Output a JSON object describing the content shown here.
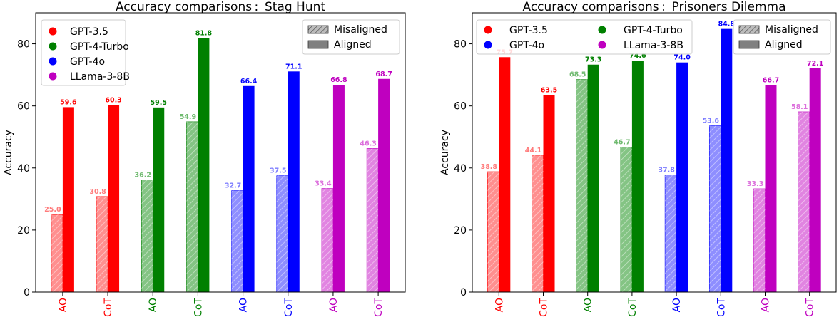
{
  "colors": {
    "gpt35": "#ff0000",
    "gpt4turbo": "#008000",
    "gpt4o": "#0000ff",
    "llama": "#bf00bf"
  },
  "legend": {
    "models": [
      "GPT-3.5",
      "GPT-4-Turbo",
      "GPT-4o",
      "LLama-3-8B"
    ],
    "styles": [
      "Misaligned",
      "Aligned"
    ]
  },
  "chart_data": [
    {
      "type": "bar",
      "title": "Accuracy comparisons :  Stag Hunt",
      "ylabel": "Accuracy",
      "ylim": [
        0,
        90
      ],
      "yticks": [
        0,
        20,
        40,
        60,
        80
      ],
      "categories": [
        "AO",
        "CoT",
        "AO",
        "CoT",
        "AO",
        "CoT",
        "AO",
        "CoT"
      ],
      "category_models": [
        "GPT-3.5",
        "GPT-3.5",
        "GPT-4-Turbo",
        "GPT-4-Turbo",
        "GPT-4o",
        "GPT-4o",
        "LLama-3-8B",
        "LLama-3-8B"
      ],
      "series": [
        {
          "name": "Misaligned",
          "values": [
            25.0,
            30.8,
            36.2,
            54.9,
            32.7,
            37.5,
            33.4,
            46.3
          ]
        },
        {
          "name": "Aligned",
          "values": [
            59.6,
            60.3,
            59.5,
            81.8,
            66.4,
            71.1,
            66.8,
            68.7
          ]
        }
      ],
      "legend_position": "top-left and top-right",
      "grid": false
    },
    {
      "type": "bar",
      "title": "Accuracy comparisons :  Prisoners Dilemma",
      "ylabel": "Accuracy",
      "ylim": [
        0,
        90
      ],
      "yticks": [
        0,
        20,
        40,
        60,
        80
      ],
      "categories": [
        "AO",
        "CoT",
        "AO",
        "CoT",
        "AO",
        "CoT",
        "AO",
        "CoT"
      ],
      "category_models": [
        "GPT-3.5",
        "GPT-3.5",
        "GPT-4-Turbo",
        "GPT-4-Turbo",
        "GPT-4o",
        "GPT-4o",
        "LLama-3-8B",
        "LLama-3-8B"
      ],
      "series": [
        {
          "name": "Misaligned",
          "values": [
            38.8,
            44.1,
            68.5,
            46.7,
            37.8,
            53.6,
            33.3,
            58.1
          ]
        },
        {
          "name": "Aligned",
          "values": [
            75.7,
            63.5,
            73.3,
            74.6,
            74.0,
            84.8,
            66.7,
            72.1
          ]
        }
      ],
      "legend_position": "top-left and top-right",
      "grid": false
    }
  ]
}
